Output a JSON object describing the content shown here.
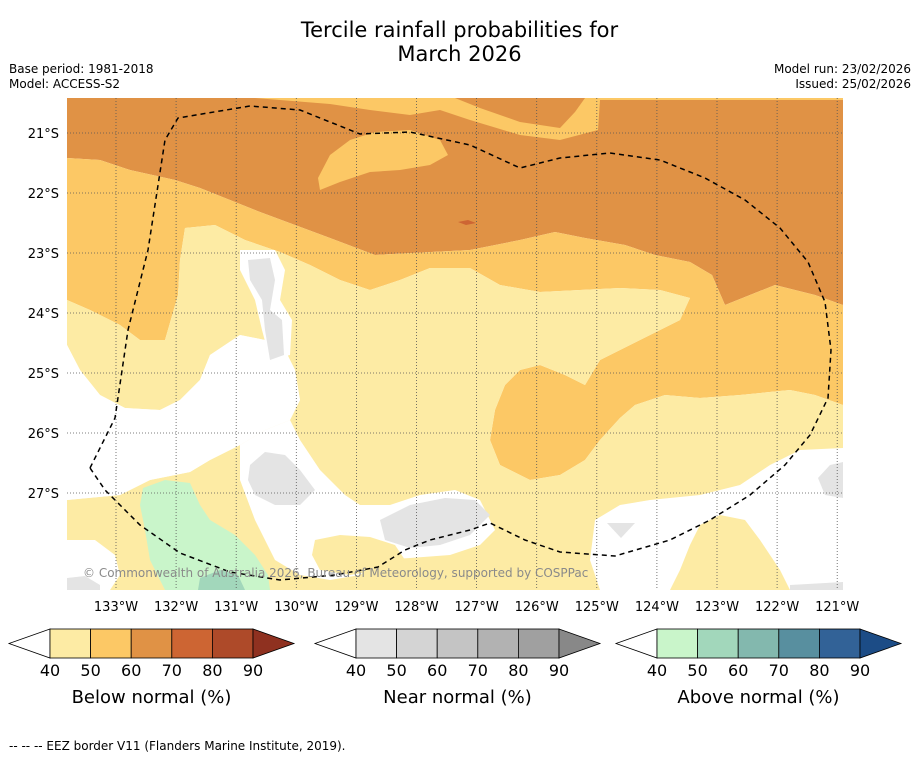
{
  "title_line1": "Tercile rainfall probabilities for",
  "title_line2": "March 2026",
  "meta_left": {
    "base_period": "Base period: 1981-2018",
    "model": "Model: ACCESS-S2"
  },
  "meta_right": {
    "model_run": "Model run: 23/02/2026",
    "issued": "Issued: 25/02/2026"
  },
  "lat_labels": [
    "21°S",
    "22°S",
    "23°S",
    "24°S",
    "25°S",
    "26°S",
    "27°S"
  ],
  "lon_labels": [
    "133°W",
    "132°W",
    "131°W",
    "130°W",
    "129°W",
    "128°W",
    "127°W",
    "126°W",
    "125°W",
    "124°W",
    "123°W",
    "122°W",
    "121°W"
  ],
  "copyright": "© Commonwealth of Australia 2026, Bureau of Meteorology, supported by COSPPac",
  "colorbars": [
    {
      "label": "Below normal (%)",
      "ticks": [
        "40",
        "50",
        "60",
        "70",
        "80",
        "90"
      ],
      "colors": [
        "#fdeba4",
        "#fcc865",
        "#e09245",
        "#cd6533",
        "#ae4a29",
        "#8f3120"
      ]
    },
    {
      "label": "Near normal (%)",
      "ticks": [
        "40",
        "50",
        "60",
        "70",
        "80",
        "90"
      ],
      "colors": [
        "#e4e4e4",
        "#d4d4d4",
        "#c4c4c4",
        "#b2b2b2",
        "#a0a0a0",
        "#888888"
      ]
    },
    {
      "label": "Above normal (%)",
      "ticks": [
        "40",
        "50",
        "60",
        "70",
        "80",
        "90"
      ],
      "colors": [
        "#c9f5ca",
        "#a2d7bb",
        "#83b8ae",
        "#588f9f",
        "#326297",
        "#1c4c86"
      ]
    }
  ],
  "footer": "-- -- -- EEZ border V11 (Flanders Marine Institute, 2019)."
}
